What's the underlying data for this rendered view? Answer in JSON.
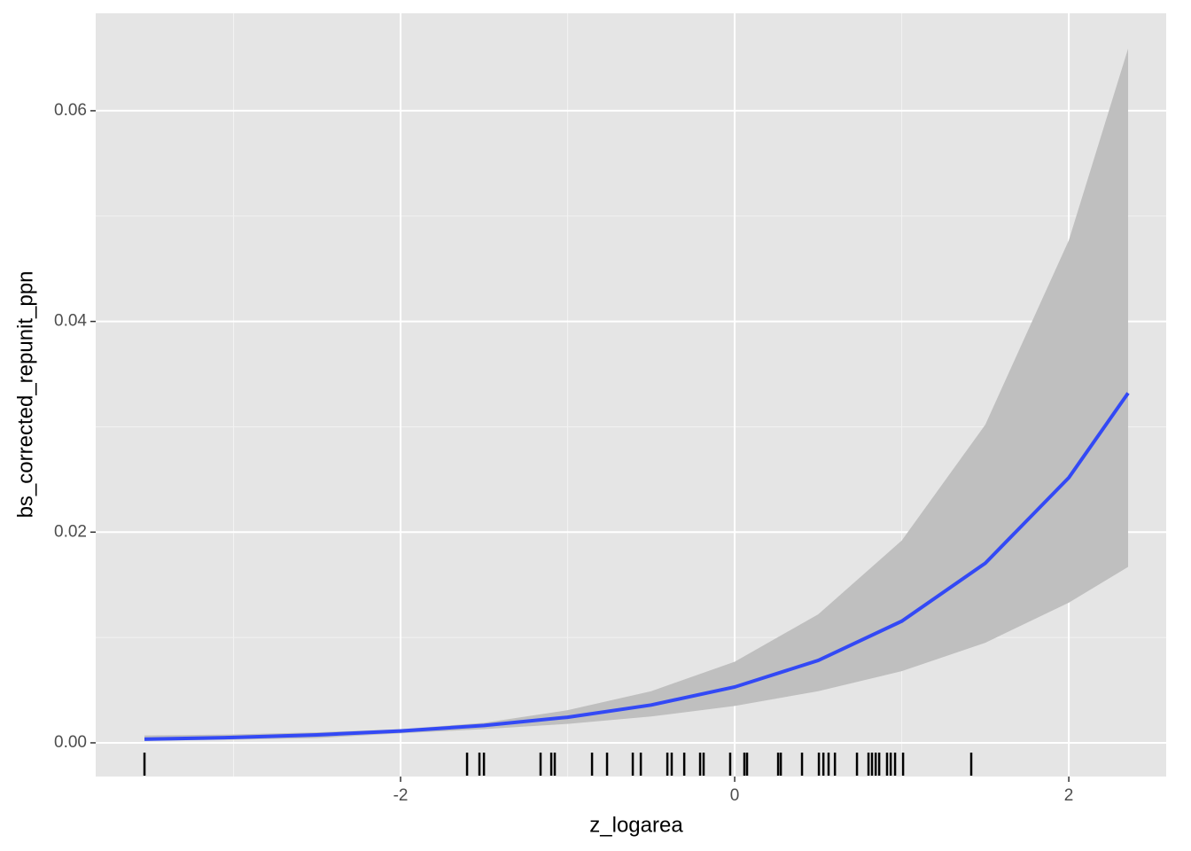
{
  "chart_data": {
    "type": "line",
    "x_label": "z_logarea",
    "y_label": "bs_corrected_repunit_ppn",
    "x": [
      -3.533,
      -3,
      -2.5,
      -2,
      -1.5,
      -1,
      -0.5,
      0,
      0.5,
      1,
      1.5,
      2,
      2.355
    ],
    "series": [
      {
        "color": "#3349f5",
        "ribbon_color": "#bfbfbf",
        "values": [
          0.00034,
          0.00051,
          0.00076,
          0.00112,
          0.00165,
          0.00243,
          0.00359,
          0.0053,
          0.00782,
          0.01155,
          0.01705,
          0.02517,
          0.0332
        ],
        "upper": [
          0.0007,
          0.0008,
          0.001,
          0.0013,
          0.0019,
          0.0031,
          0.0049,
          0.0077,
          0.0122,
          0.0192,
          0.0302,
          0.0477,
          0.0659
        ],
        "lower": [
          0.0002,
          0.0003,
          0.00045,
          0.0009,
          0.0013,
          0.0018,
          0.0025,
          0.0035,
          0.0049,
          0.0068,
          0.0095,
          0.0133,
          0.0167
        ]
      }
    ],
    "rug": [
      -3.533,
      -1.602,
      -1.528,
      -1.501,
      -1.162,
      -1.098,
      -1.077,
      -0.854,
      -0.764,
      -0.61,
      -0.562,
      -0.403,
      -0.377,
      -0.302,
      -0.207,
      -0.186,
      -0.027,
      0.058,
      0.074,
      0.26,
      0.276,
      0.403,
      0.504,
      0.531,
      0.562,
      0.6,
      0.732,
      0.801,
      0.822,
      0.844,
      0.865,
      0.912,
      0.934,
      0.96,
      1.008,
      1.416
    ],
    "xlim": [
      -3.825,
      2.583
    ],
    "ylim": [
      -0.0032,
      0.06925
    ],
    "xticks": [
      -2,
      0,
      2
    ],
    "yticks": [
      {
        "value": 0,
        "label": "0.00"
      },
      {
        "value": 0.02,
        "label": "0.02"
      },
      {
        "value": 0.04,
        "label": "0.04"
      },
      {
        "value": 0.06,
        "label": "0.06"
      }
    ],
    "minor_xticks": [
      -3,
      -1,
      1
    ],
    "minor_yticks": [
      0.01,
      0.03,
      0.05
    ],
    "grid": true
  }
}
